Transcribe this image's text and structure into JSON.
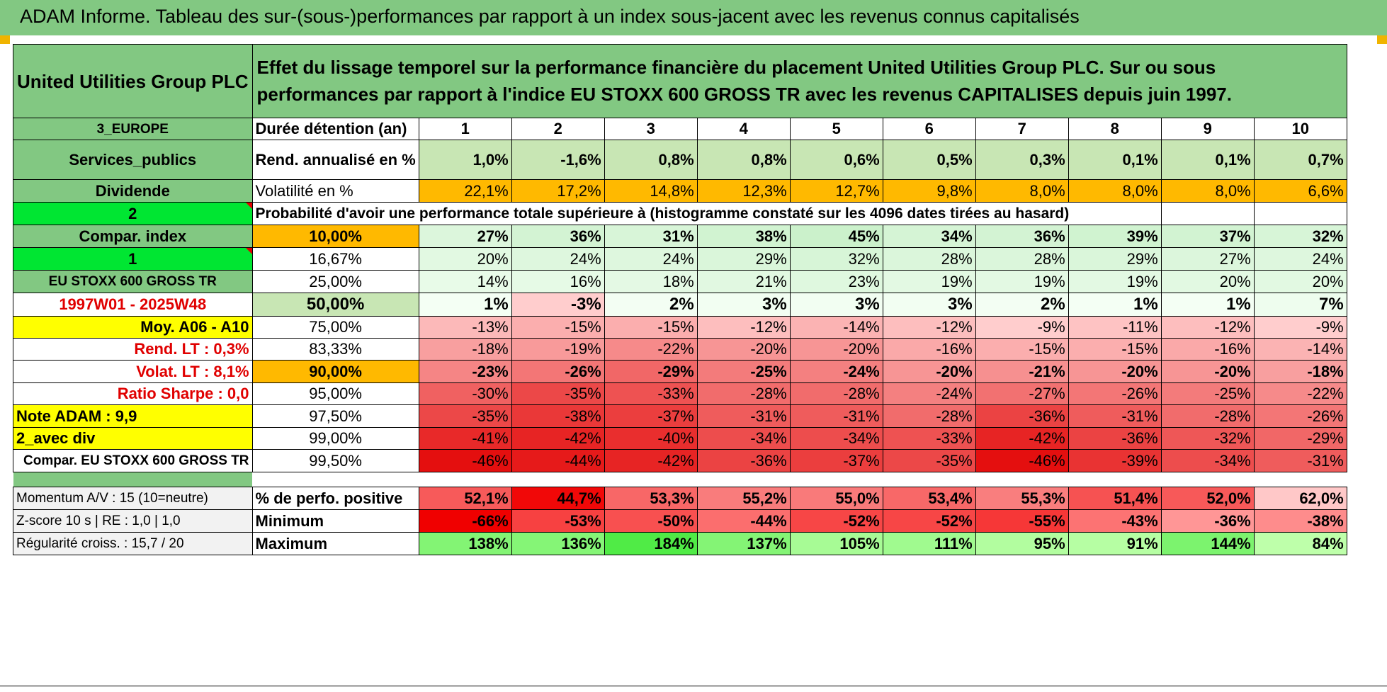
{
  "header_title": "ADAM Informe. Tableau des sur-(sous-)performances par rapport à un index sous-jacent avec les revenus connus capitalisés",
  "left": {
    "company": "United Utilities Group PLC",
    "region": "3_EUROPE",
    "sector": "Services_publics",
    "dividend": "Dividende",
    "value_2": "2",
    "compar_index": "Compar. index",
    "value_1": "1",
    "index_name": "EU STOXX 600 GROSS TR",
    "period": "1997W01 - 2025W48",
    "moy": "Moy. A06 - A10",
    "rend_lt": "Rend. LT :    0,3%",
    "volat_lt": "Volat. LT :    8,1%",
    "sharpe": "Ratio Sharpe :    0,0",
    "note": "Note ADAM : 9,9",
    "avec_div": "2_avec div",
    "compar_full": "Compar. EU STOXX 600 GROSS TR"
  },
  "title_text": "Effet du lissage temporel sur la performance financière du placement United Utilities Group PLC. Sur ou sous performances par rapport à l'indice EU STOXX 600 GROSS TR avec les revenus CAPITALISES depuis juin 1997.",
  "labels": {
    "duration": "Durée détention (an)",
    "rend": "Rend. annualisé en %",
    "vol": "Volatilité en %",
    "prob": "Probabilité d'avoir une performance totale supérieure à (histogramme constaté sur les 4096 dates tirées au hasard)",
    "pct_pos": "% de perfo. positive",
    "min": "Minimum",
    "max": "Maximum"
  },
  "years": [
    "1",
    "2",
    "3",
    "4",
    "5",
    "6",
    "7",
    "8",
    "9",
    "10"
  ],
  "rend_values": [
    "1,0%",
    "-1,6%",
    "0,8%",
    "0,8%",
    "0,6%",
    "0,5%",
    "0,3%",
    "0,1%",
    "0,1%",
    "0,7%"
  ],
  "vol_values": [
    "22,1%",
    "17,2%",
    "14,8%",
    "12,3%",
    "12,7%",
    "9,8%",
    "8,0%",
    "8,0%",
    "8,0%",
    "6,6%"
  ],
  "percentile_rows": [
    {
      "threshold": "10,00%",
      "values": [
        "27%",
        "36%",
        "31%",
        "38%",
        "45%",
        "34%",
        "36%",
        "39%",
        "37%",
        "32%"
      ]
    },
    {
      "threshold": "16,67%",
      "values": [
        "20%",
        "24%",
        "24%",
        "29%",
        "32%",
        "28%",
        "28%",
        "29%",
        "27%",
        "24%"
      ]
    },
    {
      "threshold": "25,00%",
      "values": [
        "14%",
        "16%",
        "18%",
        "21%",
        "23%",
        "19%",
        "19%",
        "19%",
        "20%",
        "20%"
      ]
    },
    {
      "threshold": "50,00%",
      "values": [
        "1%",
        "-3%",
        "2%",
        "3%",
        "3%",
        "3%",
        "2%",
        "1%",
        "1%",
        "7%"
      ]
    },
    {
      "threshold": "75,00%",
      "values": [
        "-13%",
        "-15%",
        "-15%",
        "-12%",
        "-14%",
        "-12%",
        "-9%",
        "-11%",
        "-12%",
        "-9%"
      ]
    },
    {
      "threshold": "83,33%",
      "values": [
        "-18%",
        "-19%",
        "-22%",
        "-20%",
        "-20%",
        "-16%",
        "-15%",
        "-15%",
        "-16%",
        "-14%"
      ]
    },
    {
      "threshold": "90,00%",
      "values": [
        "-23%",
        "-26%",
        "-29%",
        "-25%",
        "-24%",
        "-20%",
        "-21%",
        "-20%",
        "-20%",
        "-18%"
      ]
    },
    {
      "threshold": "95,00%",
      "values": [
        "-30%",
        "-35%",
        "-33%",
        "-28%",
        "-28%",
        "-24%",
        "-27%",
        "-26%",
        "-25%",
        "-22%"
      ]
    },
    {
      "threshold": "97,50%",
      "values": [
        "-35%",
        "-38%",
        "-37%",
        "-31%",
        "-31%",
        "-28%",
        "-36%",
        "-31%",
        "-28%",
        "-26%"
      ]
    },
    {
      "threshold": "99,00%",
      "values": [
        "-41%",
        "-42%",
        "-40%",
        "-34%",
        "-34%",
        "-33%",
        "-42%",
        "-36%",
        "-32%",
        "-29%"
      ]
    },
    {
      "threshold": "99,50%",
      "values": [
        "-46%",
        "-44%",
        "-42%",
        "-36%",
        "-37%",
        "-35%",
        "-46%",
        "-39%",
        "-34%",
        "-31%"
      ]
    }
  ],
  "bottom": {
    "momentum": "Momentum A/V : 15 (10=neutre)",
    "zscore": "Z-score 10 s | RE : 1,0 | 1,0",
    "regularite": "Régularité croiss. : 15,7 / 20",
    "pct_pos_values": [
      "52,1%",
      "44,7%",
      "53,3%",
      "55,2%",
      "55,0%",
      "53,4%",
      "55,3%",
      "51,4%",
      "52,0%",
      "62,0%"
    ],
    "min_values": [
      "-66%",
      "-53%",
      "-50%",
      "-44%",
      "-52%",
      "-52%",
      "-55%",
      "-43%",
      "-36%",
      "-38%"
    ],
    "max_values": [
      "138%",
      "136%",
      "184%",
      "137%",
      "105%",
      "111%",
      "95%",
      "91%",
      "144%",
      "84%"
    ]
  },
  "colors": {
    "header_green": "#82c882",
    "bright_green": "#00e632",
    "yellow": "#ffff00",
    "orange": "#ffb900",
    "red_text": "#e00000"
  }
}
